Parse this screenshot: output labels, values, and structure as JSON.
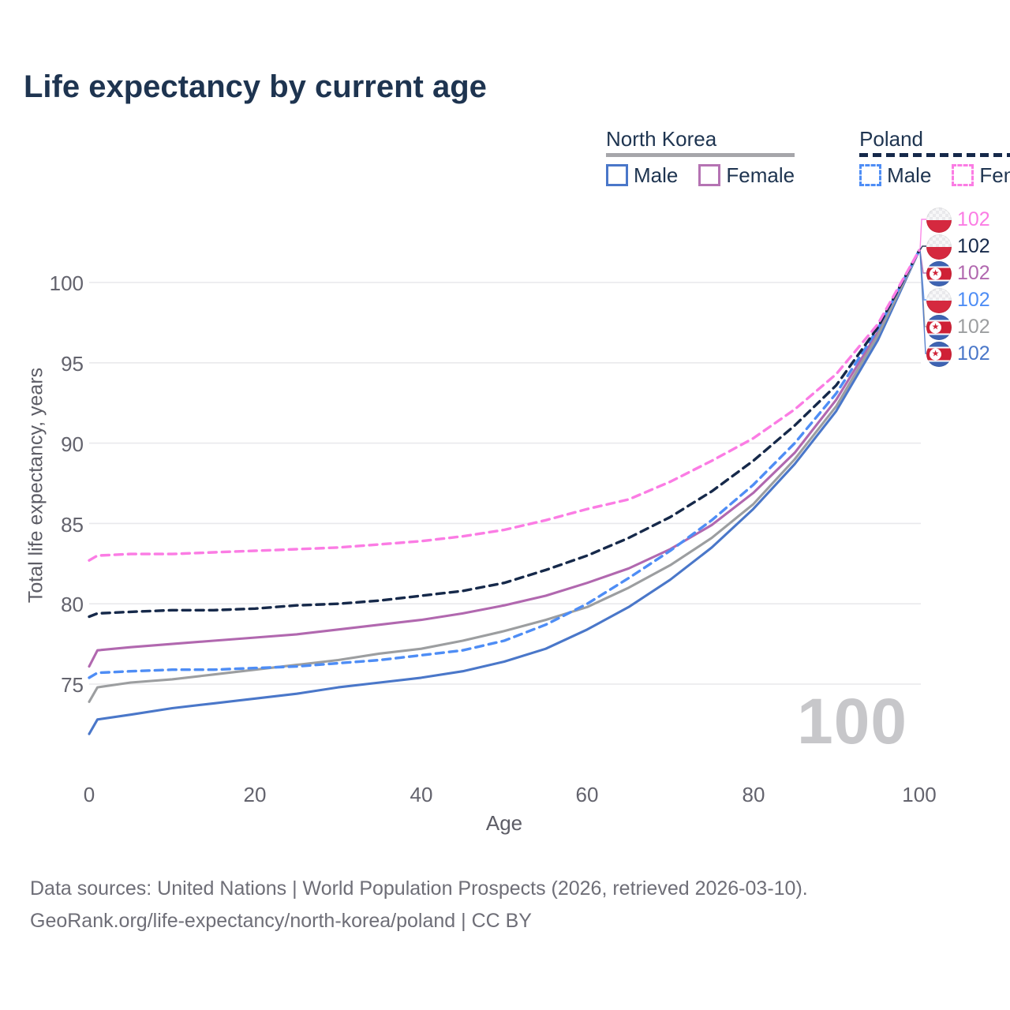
{
  "title": "Life expectancy by current age",
  "legend": {
    "groups": [
      {
        "country": "North Korea",
        "line_style": "solid",
        "underline_color": "#a6a6aa",
        "items": [
          {
            "label": "Male",
            "color": "#4a77c9",
            "dashed": false
          },
          {
            "label": "Female",
            "color": "#b573b3",
            "dashed": false
          }
        ]
      },
      {
        "country": "Poland",
        "line_style": "dashed",
        "underline_color": "#16294a",
        "items": [
          {
            "label": "Male",
            "color": "#4e8df5",
            "dashed": true
          },
          {
            "label": "Female",
            "color": "#fb7ce4",
            "dashed": true
          }
        ]
      }
    ]
  },
  "chart_data": {
    "type": "line",
    "title": "Life expectancy by current age",
    "xlabel": "Age",
    "ylabel": "Total life expectancy, years",
    "xlim": [
      0,
      100
    ],
    "ylim": [
      71,
      103
    ],
    "xticks": [
      0,
      20,
      40,
      60,
      80,
      100
    ],
    "yticks": [
      75,
      80,
      85,
      90,
      95,
      100
    ],
    "ytick_labels_top_down": [
      "100",
      "95",
      "90",
      "85",
      "80",
      "75"
    ],
    "xtick_labels": [
      "0",
      "20",
      "40",
      "60",
      "80",
      "100"
    ],
    "grid": "horizontal",
    "legend_position": "top-right",
    "age_cursor": "100",
    "x": [
      0,
      1,
      5,
      10,
      15,
      20,
      25,
      30,
      35,
      40,
      45,
      50,
      55,
      60,
      65,
      70,
      75,
      80,
      85,
      90,
      95,
      100
    ],
    "series": [
      {
        "name": "North Korea Male",
        "country": "North Korea",
        "sex": "male",
        "color": "#4a77c9",
        "dashed": false,
        "values": [
          71.9,
          72.8,
          73.1,
          73.5,
          73.8,
          74.1,
          74.4,
          74.8,
          75.1,
          75.4,
          75.8,
          76.4,
          77.2,
          78.4,
          79.8,
          81.5,
          83.5,
          85.9,
          88.7,
          92.0,
          96.4,
          102
        ]
      },
      {
        "name": "North Korea Female",
        "country": "North Korea",
        "sex": "female",
        "color": "#b168af",
        "dashed": false,
        "values": [
          76.1,
          77.1,
          77.3,
          77.5,
          77.7,
          77.9,
          78.1,
          78.4,
          78.7,
          79.0,
          79.4,
          79.9,
          80.5,
          81.3,
          82.2,
          83.4,
          84.9,
          86.9,
          89.4,
          92.7,
          96.9,
          102
        ]
      },
      {
        "name": "North Korea",
        "country": "North Korea",
        "sex": "both",
        "color": "#9c9ea0",
        "dashed": false,
        "values": [
          73.9,
          74.8,
          75.1,
          75.3,
          75.6,
          75.9,
          76.2,
          76.5,
          76.9,
          77.2,
          77.7,
          78.3,
          79.0,
          79.8,
          81.0,
          82.4,
          84.1,
          86.2,
          89.0,
          92.3,
          96.7,
          102
        ]
      },
      {
        "name": "Poland Male",
        "country": "Poland",
        "sex": "male",
        "color": "#4e8df5",
        "dashed": true,
        "values": [
          75.4,
          75.7,
          75.8,
          75.9,
          75.9,
          76.0,
          76.1,
          76.3,
          76.5,
          76.8,
          77.1,
          77.7,
          78.7,
          80.0,
          81.6,
          83.3,
          85.2,
          87.4,
          90.0,
          93.1,
          97.1,
          102
        ]
      },
      {
        "name": "Poland",
        "country": "Poland",
        "sex": "both",
        "color": "#16294a",
        "dashed": true,
        "values": [
          79.2,
          79.4,
          79.5,
          79.6,
          79.6,
          79.7,
          79.9,
          80.0,
          80.2,
          80.5,
          80.8,
          81.3,
          82.1,
          83.0,
          84.1,
          85.4,
          87.0,
          88.9,
          91.1,
          93.6,
          97.2,
          102
        ]
      },
      {
        "name": "Poland Female",
        "country": "Poland",
        "sex": "female",
        "color": "#fb7ce4",
        "dashed": true,
        "values": [
          82.7,
          83.0,
          83.1,
          83.1,
          83.2,
          83.3,
          83.4,
          83.5,
          83.7,
          83.9,
          84.2,
          84.6,
          85.2,
          85.9,
          86.5,
          87.6,
          88.9,
          90.3,
          92.1,
          94.3,
          97.4,
          102
        ]
      }
    ],
    "end_labels": [
      {
        "value": "102",
        "series": "Poland Female",
        "color": "#fb7ce4",
        "flag": "pl"
      },
      {
        "value": "102",
        "series": "Poland",
        "color": "#16294a",
        "flag": "pl"
      },
      {
        "value": "102",
        "series": "North Korea Female",
        "color": "#b168af",
        "flag": "kp"
      },
      {
        "value": "102",
        "series": "Poland Male",
        "color": "#4e8df5",
        "flag": "pl"
      },
      {
        "value": "102",
        "series": "North Korea",
        "color": "#9c9ea0",
        "flag": "kp"
      },
      {
        "value": "102",
        "series": "North Korea Male",
        "color": "#4a77c9",
        "flag": "kp"
      }
    ]
  },
  "footer": {
    "line1": "Data sources: United Nations | World Population Prospects (2026, retrieved 2026-03-10).",
    "line2": "GeoRank.org/life-expectancy/north-korea/poland | CC BY"
  }
}
